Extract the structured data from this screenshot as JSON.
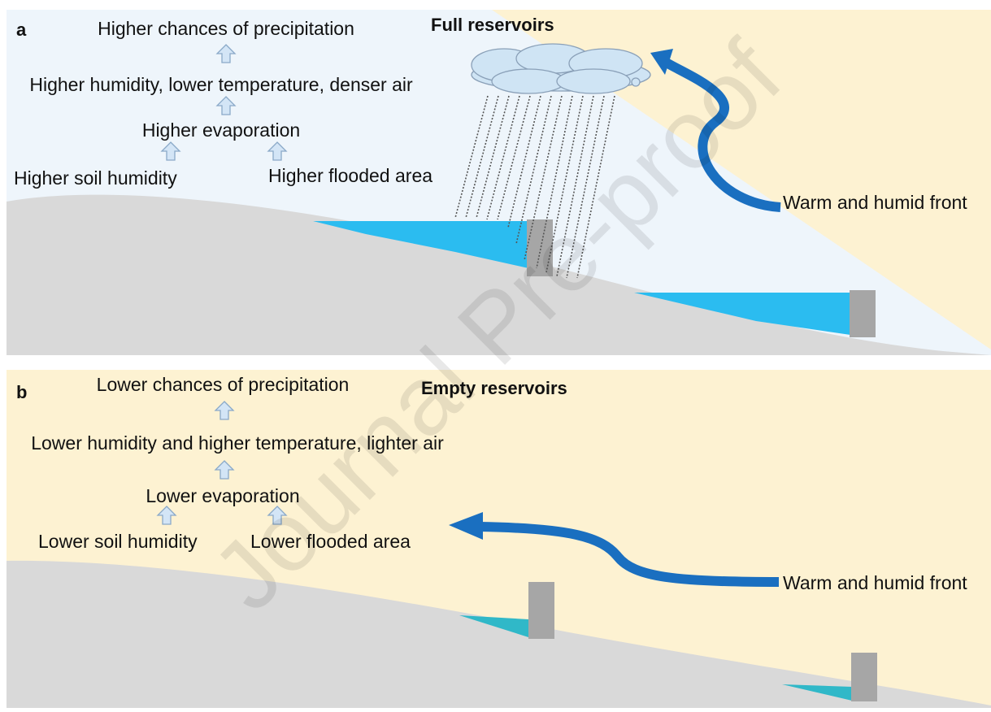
{
  "watermark": "Journal Pre-proof",
  "panels": [
    {
      "label": "a",
      "title": "Full reservoirs",
      "precipitation": "Higher chances of precipitation",
      "air": "Higher humidity, lower temperature, denser air",
      "evaporation": "Higher evaporation",
      "soil": "Higher soil humidity",
      "flooded": "Higher flooded area",
      "front": "Warm and humid front"
    },
    {
      "label": "b",
      "title": "Empty reservoirs",
      "precipitation": "Lower chances of precipitation",
      "air": "Lower humidity and higher temperature, lighter air",
      "evaporation": "Lower evaporation",
      "soil": "Lower soil humidity",
      "flooded": "Lower flooded area",
      "front": "Warm and humid front"
    }
  ]
}
